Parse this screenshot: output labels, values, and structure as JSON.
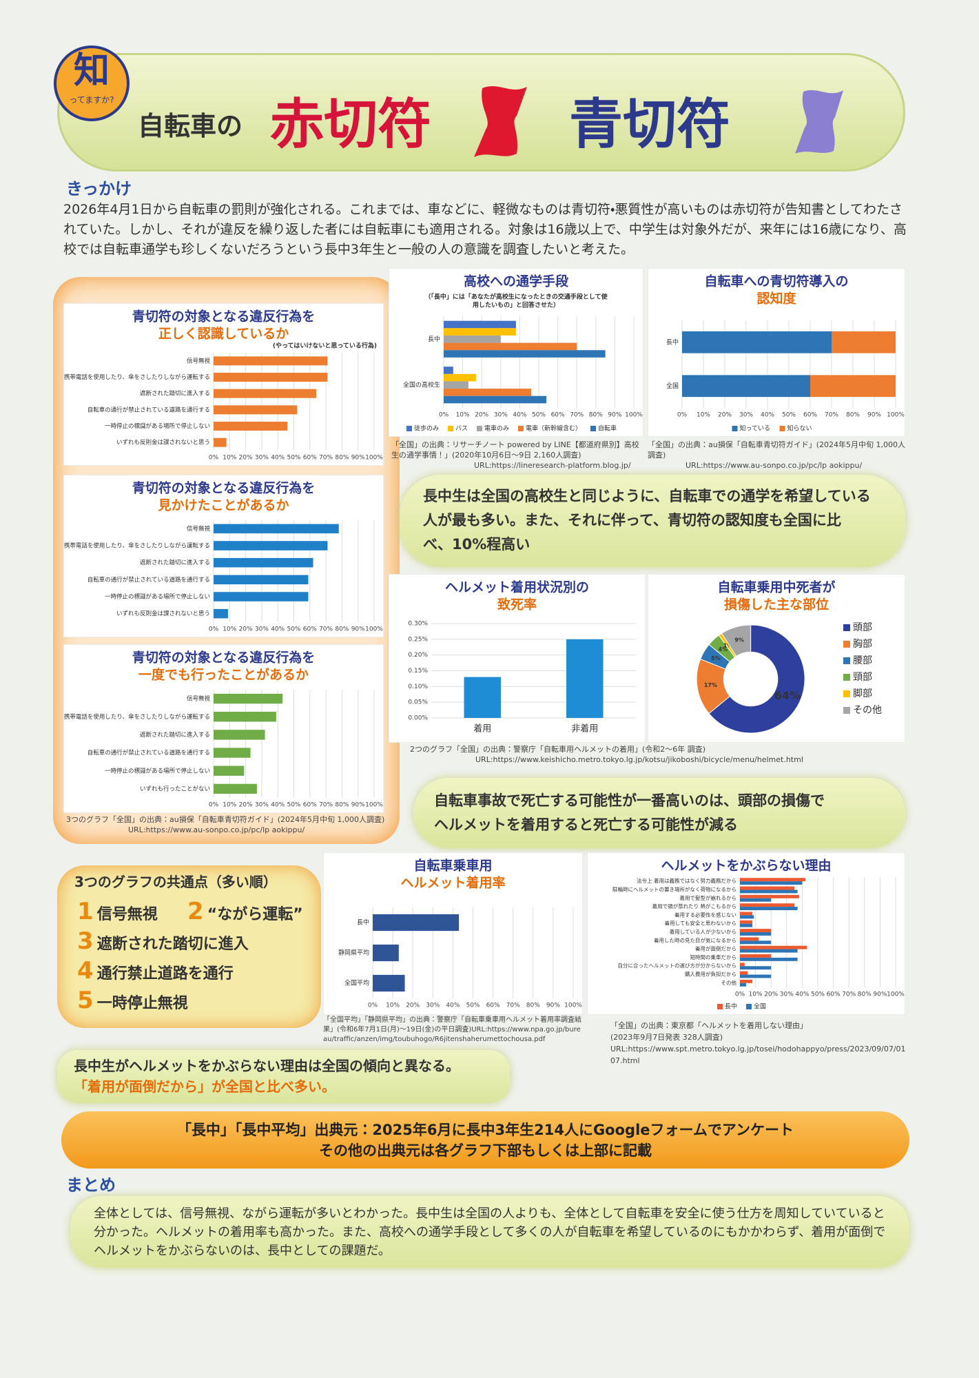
{
  "header": {
    "badge": "知",
    "badge_sub": "ってますか?",
    "prefix": "自転車の",
    "red": "赤切符",
    "blue": "青切符"
  },
  "intro": {
    "heading": "きっかけ",
    "text": "2026年4月1日から自転車の罰則が強化される。これまでは、車などに、軽微なものは青切符・悪質性が高いものは赤切符が告知書としてわたされていた。しかし、それが違反を繰り返した者には自転車にも適用される。対象は16歳以上で、中学生は対象外だが、来年には16歳になり、高校では自転車通学も珍しくないだろうという長中3年生と一般の人の意識を調査したいと考えた。"
  },
  "captions": {
    "survey3": [
      "3つのグラフ「全国」の出典：au損保「自転車青切符ガイド」(2024年5月中旬 1,000人調査)",
      "URL:https://www.au-sonpo.co.jp/pc/lp aokippu/"
    ],
    "commute": [
      "「全国」の出典：リサーチノート powered by LINE【都道府県別】高校生の通学事情！」(2020年10月6日〜9日 2,160人調査)",
      "URL:https://lineresearch-platform.blog.jp/"
    ],
    "awareness": [
      "「全国」の出典：au損保「自転車青切符ガイド」(2024年5月中旬 1,000人調査)",
      "URL:https://www.au-sonpo.co.jp/pc/lp aokippu/"
    ],
    "police": [
      "2つのグラフ「全国」の出典：警察庁「自転車用ヘルメットの着用」(令和2〜6年 調査)",
      "URL:https://www.keishicho.metro.tokyo.lg.jp/kotsu/jikoboshi/bicycle/menu/helmet.html"
    ],
    "helmet_rate": [
      "「全国平均」「静岡県平均」の出典：警察庁「自転車乗車用ヘルメット着用率調査結果」(令和6年7月1日(月)〜19日(金)の平日調査)URL:https://www.npa.go.jp/bureau/traffic/anzen/img/toubuhogo/R6jitenshaherumettochousa.pdf"
    ],
    "reasons": [
      "「全国」の出典：東京都「ヘルメットを着用しない理由」",
      "(2023年9月7日発表 328人調査)",
      "URL:https://www.spt.metro.tokyo.lg.jp/tosei/hodohappyo/press/2023/09/07/01 07.html"
    ]
  },
  "bubbles": {
    "commute": [
      "長中生は全国の高校生と同じように、自転車での通学を希望している",
      "人が最も多い。また、それに伴って、青切符の認知度も全国に比",
      "べ、10%程高い"
    ],
    "helmet": [
      "自転車事故で死亡する可能性が一番高いのは、頭部の損傷で",
      "ヘルメットを着用すると死亡する可能性が減る"
    ],
    "reasons": [
      "長中生がヘルメットをかぶらない理由は全国の傾向と異なる。",
      "「着用が面倒だから」が全国と比べ多い。"
    ]
  },
  "common": {
    "title": "3つのグラフの共通点（多い順）",
    "items": [
      {
        "rank": 1,
        "text": "信号無視"
      },
      {
        "rank": 2,
        "text": "“ながら運転”"
      },
      {
        "rank": 3,
        "text": "遮断された踏切に進入"
      },
      {
        "rank": 4,
        "text": "通行禁止道路を通行"
      },
      {
        "rank": 5,
        "text": "一時停止無視"
      }
    ]
  },
  "source": [
    "「長中」「長中平均」出典元：2025年6月に長中3年生214人にGoogleフォームでアンケート",
    "その他の出典元は各グラフ下部もしくは上部に記載"
  ],
  "summary": {
    "heading": "まとめ",
    "text": "全体としては、信号無視、ながら運転が多いとわかった。長中生は全国の人よりも、全体として自転車を安全に使う仕方を周知していていると分かった。ヘルメットの着用率も高かった。また、高校への通学手段として多くの人が自転車を希望しているのにもかかわらず、着用が面倒でヘルメットをかぶらないのは、長中としての課題だ。"
  },
  "chart_data": [
    {
      "type": "bar",
      "horizontal": true,
      "title": [
        "青切符の対象となる違反行為を",
        "正しく認識しているか"
      ],
      "note": "(やってはいけないと思っている行為)",
      "categories": [
        "信号無視",
        "携帯電話を使用したり、傘をさしたりしながら運転する",
        "遮断された踏切に進入する",
        "自転車の通行が禁止されている道路を通行する",
        "一時停止の標識がある場所で停止しない",
        "いずれも反則金は課されないと思う"
      ],
      "values": [
        71,
        71,
        64,
        52,
        46,
        8
      ],
      "color": "#ed7d31",
      "grid": true,
      "xlim": [
        0,
        100
      ],
      "xticks": [
        {
          "value": 0,
          "label": "0%"
        },
        {
          "value": 10,
          "label": "10%"
        },
        {
          "value": 20,
          "label": "20%"
        },
        {
          "value": 30,
          "label": "30%"
        },
        {
          "value": 40,
          "label": "40%"
        },
        {
          "value": 50,
          "label": "50%"
        },
        {
          "value": 60,
          "label": "60%"
        },
        {
          "value": 70,
          "label": "70%"
        },
        {
          "value": 80,
          "label": "80%"
        },
        {
          "value": 90,
          "label": "90%"
        },
        {
          "value": 100,
          "label": "100%"
        }
      ]
    },
    {
      "type": "bar",
      "horizontal": true,
      "title": [
        "青切符の対象となる違反行為を",
        "見かけたことがあるか"
      ],
      "categories": [
        "信号無視",
        "携帯電話を使用したり、傘をさしたりしながら運転する",
        "遮断された踏切に進入する",
        "自転車の通行が禁止されている道路を通行する",
        "一時停止の標識がある場所で停止しない",
        "いずれも反則金は課されないと思う"
      ],
      "values": [
        78,
        71,
        62,
        59,
        59,
        9
      ],
      "color": "#1f80c8",
      "grid": true,
      "xlim": [
        0,
        100
      ],
      "xticks": [
        {
          "value": 0,
          "label": "0%"
        },
        {
          "value": 10,
          "label": "10%"
        },
        {
          "value": 20,
          "label": "20%"
        },
        {
          "value": 30,
          "label": "30%"
        },
        {
          "value": 40,
          "label": "40%"
        },
        {
          "value": 50,
          "label": "50%"
        },
        {
          "value": 60,
          "label": "60%"
        },
        {
          "value": 70,
          "label": "70%"
        },
        {
          "value": 80,
          "label": "80%"
        },
        {
          "value": 90,
          "label": "90%"
        },
        {
          "value": 100,
          "label": "100%"
        }
      ]
    },
    {
      "type": "bar",
      "horizontal": true,
      "title": [
        "青切符の対象となる違反行為を",
        "一度でも行ったことがあるか"
      ],
      "categories": [
        "信号無視",
        "携帯電話を使用したり、傘をさしたりしながら運転する",
        "遮断された踏切に進入する",
        "自転車の通行が禁止されている道路を通行する",
        "一時停止の標識がある場所で停止しない",
        "いずれも行ったことがない"
      ],
      "values": [
        43,
        39,
        32,
        23,
        19,
        27
      ],
      "color": "#70ad47",
      "grid": true,
      "xlim": [
        0,
        100
      ],
      "xticks": [
        {
          "value": 0,
          "label": "0%"
        },
        {
          "value": 10,
          "label": "10%"
        },
        {
          "value": 20,
          "label": "20%"
        },
        {
          "value": 30,
          "label": "30%"
        },
        {
          "value": 40,
          "label": "40%"
        },
        {
          "value": 50,
          "label": "50%"
        },
        {
          "value": 60,
          "label": "60%"
        },
        {
          "value": 70,
          "label": "70%"
        },
        {
          "value": 80,
          "label": "80%"
        },
        {
          "value": 90,
          "label": "90%"
        },
        {
          "value": 100,
          "label": "100%"
        }
      ]
    },
    {
      "type": "bar",
      "horizontal": true,
      "title": [
        "高校への通学手段"
      ],
      "subtitle": [
        "（「長中」には「あなたが高校生になったときの交通手段として使",
        "用したいもの」と回答させた）"
      ],
      "categories": [
        "長中",
        "全国の高校生"
      ],
      "series": [
        {
          "name": "徒歩のみ",
          "color": "#4472c4",
          "values": [
            38,
            5
          ]
        },
        {
          "name": "バス",
          "color": "#ffc000",
          "values": [
            38,
            17
          ]
        },
        {
          "name": "電車のみ",
          "color": "#a5a5a5",
          "values": [
            30,
            13
          ]
        },
        {
          "name": "電車（新幹線含む）",
          "color": "#ed7d31",
          "values": [
            70,
            46
          ]
        },
        {
          "name": "自転車",
          "color": "#2e75b6",
          "values": [
            85,
            54
          ]
        }
      ],
      "grid": true,
      "xlim": [
        0,
        100
      ],
      "xticks": [
        {
          "value": 0,
          "label": "0%"
        },
        {
          "value": 10,
          "label": "10%"
        },
        {
          "value": 20,
          "label": "20%"
        },
        {
          "value": 30,
          "label": "30%"
        },
        {
          "value": 40,
          "label": "40%"
        },
        {
          "value": 50,
          "label": "50%"
        },
        {
          "value": 60,
          "label": "60%"
        },
        {
          "value": 70,
          "label": "70%"
        },
        {
          "value": 80,
          "label": "80%"
        },
        {
          "value": 90,
          "label": "90%"
        },
        {
          "value": 100,
          "label": "100%"
        }
      ]
    },
    {
      "type": "bar",
      "horizontal": true,
      "stacked": true,
      "title": [
        "自転車への青切符導入の",
        "認知度"
      ],
      "categories": [
        "長中",
        "全国"
      ],
      "series": [
        {
          "name": "知っている",
          "color": "#2e75b6",
          "values": [
            70,
            60
          ]
        },
        {
          "name": "知らない",
          "color": "#ed7d31",
          "values": [
            30,
            40
          ]
        }
      ],
      "grid": true,
      "xlim": [
        0,
        100
      ],
      "xticks": [
        {
          "value": 0,
          "label": "0%"
        },
        {
          "value": 10,
          "label": "10%"
        },
        {
          "value": 20,
          "label": "20%"
        },
        {
          "value": 30,
          "label": "30%"
        },
        {
          "value": 40,
          "label": "40%"
        },
        {
          "value": 50,
          "label": "50%"
        },
        {
          "value": 60,
          "label": "60%"
        },
        {
          "value": 70,
          "label": "70%"
        },
        {
          "value": 80,
          "label": "80%"
        },
        {
          "value": 90,
          "label": "90%"
        },
        {
          "value": 100,
          "label": "100%"
        }
      ]
    },
    {
      "type": "bar",
      "title": [
        "ヘルメット着用状況別の",
        "致死率"
      ],
      "categories": [
        "着用",
        "非着用"
      ],
      "values": [
        0.13,
        0.25
      ],
      "color": "#1f8dd6",
      "grid": true,
      "ylim": [
        0,
        0.3
      ],
      "yticks": [
        {
          "value": 0,
          "label": "0.00%"
        },
        {
          "value": 0.05,
          "label": "0.05%"
        },
        {
          "value": 0.1,
          "label": "0.10%"
        },
        {
          "value": 0.15,
          "label": "0.15%"
        },
        {
          "value": 0.2,
          "label": "0.20%"
        },
        {
          "value": 0.25,
          "label": "0.25%"
        },
        {
          "value": 0.3,
          "label": "0.30%"
        }
      ]
    },
    {
      "type": "pie",
      "donut": true,
      "title": [
        "自転車乗用中死者が",
        "損傷した主な部位"
      ],
      "categories": [
        "頭部",
        "胸部",
        "腰部",
        "頸部",
        "脚部",
        "その他"
      ],
      "values": [
        64,
        17,
        5,
        4,
        1,
        9
      ],
      "value_labels": [
        "64%",
        "17%",
        "5%",
        "4%",
        "1%",
        "9%"
      ],
      "colors": [
        "#2f3f9e",
        "#ed7d31",
        "#2e75b6",
        "#70ad47",
        "#ffc000",
        "#a5a5a5"
      ]
    },
    {
      "type": "bar",
      "horizontal": true,
      "title": [
        "自転車乗車用",
        "ヘルメット着用率"
      ],
      "categories": [
        "長中",
        "静岡県平均",
        "全国平均"
      ],
      "values": [
        43,
        13,
        16
      ],
      "color": "#2f5597",
      "grid": true,
      "xlim": [
        0,
        100
      ],
      "xticks": [
        {
          "value": 0,
          "label": "0%"
        },
        {
          "value": 10,
          "label": "10%"
        },
        {
          "value": 20,
          "label": "20%"
        },
        {
          "value": 30,
          "label": "30%"
        },
        {
          "value": 40,
          "label": "40%"
        },
        {
          "value": 50,
          "label": "50%"
        },
        {
          "value": 60,
          "label": "60%"
        },
        {
          "value": 70,
          "label": "70%"
        },
        {
          "value": 80,
          "label": "80%"
        },
        {
          "value": 90,
          "label": "90%"
        },
        {
          "value": 100,
          "label": "100%"
        }
      ]
    },
    {
      "type": "bar",
      "horizontal": true,
      "title": [
        "ヘルメットをかぶらない理由"
      ],
      "categories": [
        "法令上 着用は義務ではなく努力義務だから",
        "駐輪時にヘルメットの置き場所がなく荷物になるから",
        "着用で髪型が崩れるから",
        "着用で頭が蒸れたり 熱がこもるから",
        "着用する必要性を感じない",
        "着用しても安全と思わないから",
        "着用している人が少ないから",
        "着用した時の見た目が気になるから",
        "着用が面倒だから",
        "短時間の乗車だから",
        "自分に合ったヘルメットの選び方が分からないから",
        "購入費用が負担だから",
        "その他"
      ],
      "series": [
        {
          "name": "長中",
          "color": "#ed5a31",
          "values": [
            42,
            35,
            38,
            35,
            8,
            8,
            20,
            12,
            43,
            20,
            3,
            5,
            8
          ]
        },
        {
          "name": "全国",
          "color": "#2e75b6",
          "values": [
            40,
            37,
            20,
            37,
            9,
            8,
            20,
            20,
            37,
            37,
            20,
            20,
            4
          ]
        }
      ],
      "grid": true,
      "xlim": [
        0,
        100
      ],
      "xticks": [
        {
          "value": 0,
          "label": "0%"
        },
        {
          "value": 10,
          "label": "10%"
        },
        {
          "value": 20,
          "label": "20%"
        },
        {
          "value": 30,
          "label": "30%"
        },
        {
          "value": 40,
          "label": "40%"
        },
        {
          "value": 50,
          "label": "50%"
        },
        {
          "value": 60,
          "label": "60%"
        },
        {
          "value": 70,
          "label": "70%"
        },
        {
          "value": 80,
          "label": "80%"
        },
        {
          "value": 90,
          "label": "90%"
        },
        {
          "value": 100,
          "label": "100%"
        }
      ]
    }
  ]
}
